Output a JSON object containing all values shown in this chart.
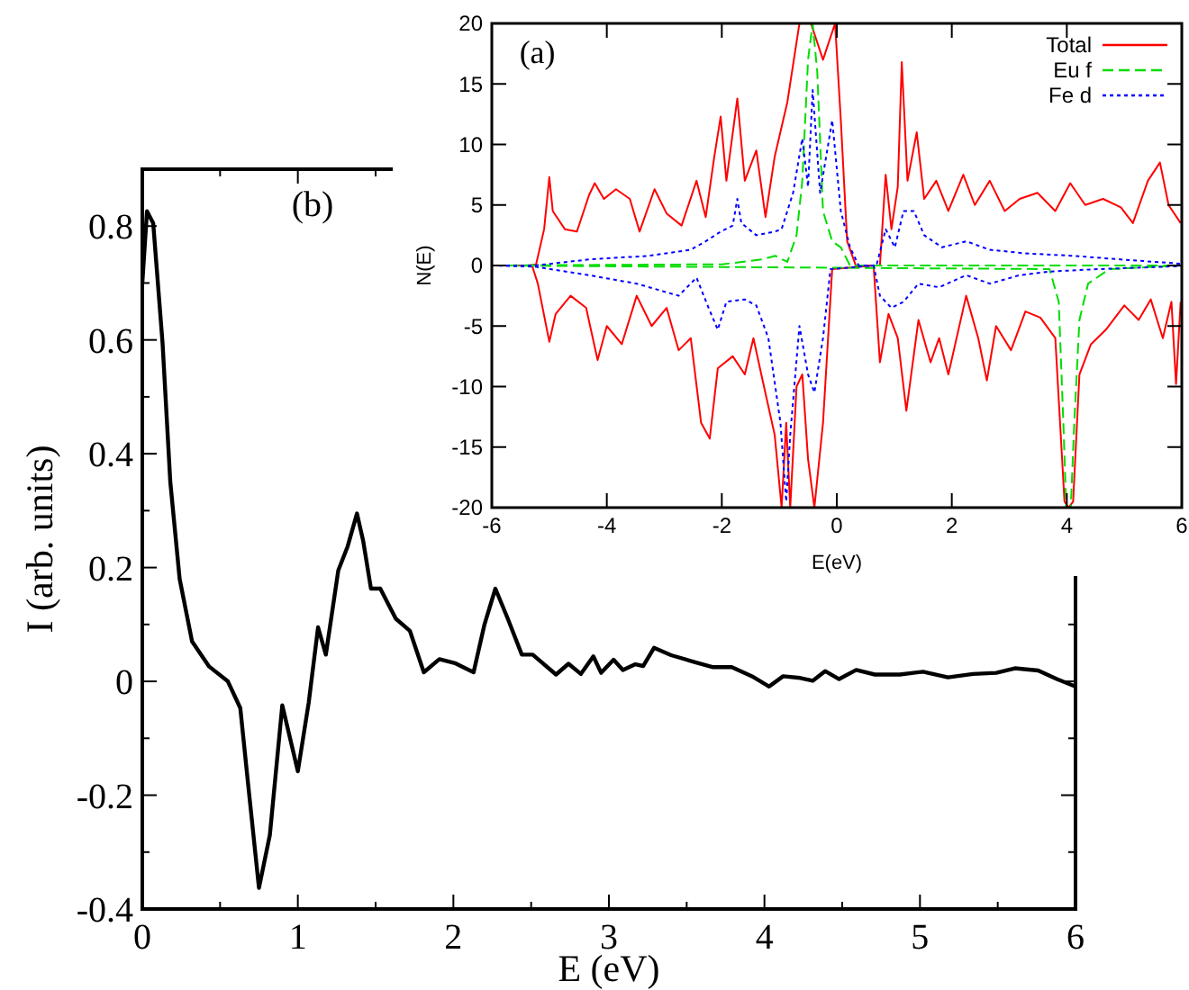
{
  "chart_data": [
    {
      "type": "line",
      "xlabel": "E (eV)",
      "ylabel": "I (arb. units)",
      "annotations": [
        "(b)"
      ],
      "xlim": [
        0,
        6
      ],
      "ylim": [
        -0.4,
        0.9
      ],
      "xticks": [
        0,
        {
          "value": 0.5,
          "label": null
        },
        1,
        {
          "value": 1.5,
          "label": null
        },
        2,
        {
          "value": 2.5,
          "label": null
        },
        3,
        {
          "value": 3.5,
          "label": null
        },
        4,
        {
          "value": 4.5,
          "label": null
        },
        5,
        {
          "value": 5.5,
          "label": null
        },
        6
      ],
      "yticks": [
        -0.4,
        {
          "value": -0.3,
          "label": null
        },
        -0.2,
        {
          "value": -0.1,
          "label": null
        },
        0,
        {
          "value": 0.1,
          "label": null
        },
        0.2,
        {
          "value": 0.3,
          "label": null
        },
        0.4,
        {
          "value": 0.5,
          "label": null
        },
        0.6,
        {
          "value": 0.7,
          "label": null
        },
        0.8
      ],
      "grid": false,
      "legend": false,
      "line_style": "solid",
      "series": [
        {
          "color": "#000000",
          "x": [
            0,
            0.03,
            0.07,
            0.13,
            0.18,
            0.24,
            0.32,
            0.43,
            0.55,
            0.63,
            0.68,
            0.75,
            0.82,
            0.9,
            1.0,
            1.07,
            1.13,
            1.18,
            1.26,
            1.32,
            1.38,
            1.42,
            1.47,
            1.53,
            1.63,
            1.72,
            1.81,
            1.91,
            2.01,
            2.13,
            2.2,
            2.27,
            2.35,
            2.44,
            2.51,
            2.66,
            2.74,
            2.82,
            2.9,
            2.95,
            3.03,
            3.09,
            3.17,
            3.22,
            3.29,
            3.4,
            3.55,
            3.67,
            3.79,
            3.92,
            4.03,
            4.12,
            4.23,
            4.31,
            4.39,
            4.48,
            4.59,
            4.71,
            4.87,
            5.02,
            5.18,
            5.34,
            5.49,
            5.61,
            5.76,
            5.88,
            6.0
          ],
          "values": [
            0.7,
            0.826,
            0.805,
            0.595,
            0.35,
            0.18,
            0.07,
            0.026,
            0.0,
            -0.047,
            -0.18,
            -0.363,
            -0.27,
            -0.042,
            -0.158,
            -0.037,
            0.095,
            0.047,
            0.195,
            0.237,
            0.295,
            0.247,
            0.163,
            0.163,
            0.11,
            0.089,
            0.016,
            0.039,
            0.032,
            0.016,
            0.1,
            0.163,
            0.11,
            0.047,
            0.047,
            0.012,
            0.031,
            0.013,
            0.044,
            0.015,
            0.038,
            0.02,
            0.03,
            0.027,
            0.059,
            0.046,
            0.034,
            0.025,
            0.025,
            0.009,
            -0.009,
            0.009,
            0.006,
            0.001,
            0.018,
            0.004,
            0.02,
            0.012,
            0.012,
            0.017,
            0.007,
            0.013,
            0.015,
            0.023,
            0.019,
            0.004,
            -0.009
          ]
        }
      ]
    },
    {
      "type": "line",
      "xlabel": "E(eV)",
      "ylabel": "N(E)",
      "annotations": [
        "(a)"
      ],
      "xlim": [
        -6,
        6
      ],
      "ylim": [
        -20,
        20
      ],
      "xticks": [
        -6,
        -4,
        -2,
        0,
        2,
        4,
        6
      ],
      "yticks": [
        -20,
        -15,
        -10,
        -5,
        0,
        5,
        10,
        15,
        20
      ],
      "grid": false,
      "legend": "top right",
      "series": [
        {
          "name": "Total",
          "color": "#ff0000",
          "line_style": "solid",
          "x": [
            -6,
            -5.35,
            -5.23,
            -5.09,
            -5.0,
            -4.94,
            -4.73,
            -4.52,
            -4.31,
            -4.21,
            -4.05,
            -3.84,
            -3.6,
            -3.43,
            -3.17,
            -2.96,
            -2.7,
            -2.44,
            -2.28,
            -2.13,
            -2.02,
            -1.92,
            -1.73,
            -1.6,
            -1.4,
            -1.24,
            -1.08,
            -0.86,
            -0.65,
            -0.45,
            -0.24,
            -0.03,
            0.07,
            0.18,
            0.33,
            0.75,
            0.85,
            0.95,
            1.06,
            1.13,
            1.23,
            1.39,
            1.52,
            1.73,
            1.94,
            2.2,
            2.4,
            2.66,
            2.92,
            3.18,
            3.49,
            3.8,
            4.06,
            4.32,
            4.63,
            4.94,
            5.15,
            5.41,
            5.62,
            5.77,
            5.98
          ],
          "values": [
            0,
            0,
            0.1,
            3,
            7.3,
            4.5,
            3,
            2.8,
            5.8,
            6.8,
            5.5,
            6.3,
            5.5,
            2.8,
            6.3,
            4.3,
            3.3,
            7,
            4,
            9,
            12.3,
            7,
            13.8,
            7,
            9.5,
            4,
            9,
            13.5,
            20,
            20,
            17,
            20,
            12,
            2,
            0,
            0,
            7.5,
            3,
            6.5,
            16.8,
            7,
            11,
            5.5,
            7,
            4.5,
            7.5,
            5,
            7,
            4.5,
            5.5,
            6,
            4.5,
            6.8,
            5,
            5.5,
            4.8,
            3.5,
            7,
            8.5,
            5,
            3.5
          ]
        },
        {
          "color": "#ff0000",
          "line_style": "solid",
          "x": [
            -6,
            -5.3,
            -5.2,
            -5.0,
            -4.89,
            -4.63,
            -4.36,
            -4.16,
            -4.0,
            -3.74,
            -3.48,
            -3.22,
            -2.96,
            -2.75,
            -2.54,
            -2.36,
            -2.21,
            -2.07,
            -1.81,
            -1.6,
            -1.45,
            -1.29,
            -1.08,
            -0.96,
            -0.88,
            -0.81,
            -0.7,
            -0.6,
            -0.5,
            -0.39,
            -0.24,
            -0.08,
            0.64,
            0.75,
            0.9,
            1.06,
            1.21,
            1.42,
            1.63,
            1.78,
            1.94,
            2.25,
            2.46,
            2.61,
            2.77,
            3.03,
            3.28,
            3.54,
            3.8,
            3.96,
            4.03,
            4.11,
            4.22,
            4.42,
            4.68,
            5.0,
            5.25,
            5.46,
            5.67,
            5.82,
            5.9,
            5.98
          ],
          "values": [
            0,
            0,
            -1.5,
            -6.3,
            -4,
            -2.5,
            -3.5,
            -7.8,
            -5,
            -6.5,
            -2.5,
            -5,
            -3.5,
            -7,
            -6,
            -13,
            -14.3,
            -8.5,
            -7.5,
            -9,
            -6,
            -9.5,
            -14,
            -20,
            -13,
            -20,
            -10,
            -9,
            -16,
            -20,
            -13,
            -0.3,
            0,
            -8,
            -4,
            -6,
            -12,
            -4.5,
            -8,
            -6,
            -9,
            -2.5,
            -6,
            -9.5,
            -5,
            -7,
            -3.8,
            -4.3,
            -6,
            -19.5,
            -20,
            -19.5,
            -9,
            -6.5,
            -5.3,
            -3.3,
            -4.5,
            -2.8,
            -6,
            -3,
            -9.8,
            -3
          ]
        },
        {
          "name": "Eu f",
          "color": "#00dd00",
          "line_style": "dashed",
          "x": [
            -6,
            -2,
            -1.3,
            -1.07,
            -0.86,
            -0.7,
            -0.6,
            -0.5,
            -0.42,
            -0.34,
            -0.24,
            -0.08,
            0.07,
            0.23,
            6
          ],
          "values": [
            0,
            0.1,
            0.5,
            0.8,
            0.3,
            2.5,
            7,
            17,
            20,
            16,
            4.5,
            2,
            1.5,
            0,
            0
          ]
        },
        {
          "color": "#00dd00",
          "line_style": "dashed",
          "x": [
            -6,
            3.7,
            3.86,
            3.94,
            3.99,
            4.07,
            4.13,
            4.22,
            4.37,
            4.74,
            6
          ],
          "values": [
            0,
            -0.3,
            -3,
            -13,
            -20,
            -20,
            -13,
            -4.5,
            -1.5,
            -0.3,
            0
          ]
        },
        {
          "name": "Fe d",
          "color": "#0000ff",
          "line_style": "dotted",
          "x": [
            -6,
            -5.25,
            -4.31,
            -3.27,
            -2.54,
            -2.28,
            -2.02,
            -1.81,
            -1.73,
            -1.66,
            -1.4,
            -1.08,
            -0.96,
            -0.76,
            -0.6,
            -0.5,
            -0.42,
            -0.29,
            -0.08,
            0.07,
            0.23,
            0.38,
            0.69,
            0.85,
            1.01,
            1.16,
            1.34,
            1.52,
            1.83,
            2.25,
            2.66,
            3.28,
            4.11,
            4.94,
            5.98
          ],
          "values": [
            0,
            0,
            0.5,
            0.8,
            1.3,
            2,
            2.8,
            3.3,
            5.5,
            3.5,
            2.5,
            2.8,
            3,
            6,
            10.5,
            6.5,
            14.5,
            6,
            12,
            4.5,
            1.5,
            0,
            0,
            3,
            1.5,
            4.5,
            4.5,
            2.5,
            1.5,
            2,
            1.3,
            1,
            0.8,
            0.5,
            0.15
          ]
        },
        {
          "color": "#0000ff",
          "line_style": "dotted",
          "x": [
            -6,
            -5.25,
            -4.31,
            -3.48,
            -2.75,
            -2.44,
            -2.23,
            -2.07,
            -1.92,
            -1.6,
            -1.4,
            -1.19,
            -0.98,
            -0.88,
            -0.81,
            -0.65,
            -0.5,
            -0.39,
            -0.24,
            -0.11,
            0.64,
            0.75,
            0.95,
            1.16,
            1.42,
            1.78,
            2.25,
            2.66,
            3.18,
            3.7,
            4.53,
            5.98
          ],
          "values": [
            0,
            -0.1,
            -0.8,
            -1.5,
            -2.5,
            -1,
            -3.5,
            -5.3,
            -3,
            -2.8,
            -3.3,
            -6,
            -13,
            -19.5,
            -14,
            -5,
            -9,
            -10.5,
            -6,
            -0.3,
            0,
            -2.5,
            -3.5,
            -3,
            -1.5,
            -1.8,
            -0.8,
            -1.5,
            -0.8,
            -0.5,
            -0.3,
            -0.05
          ]
        }
      ]
    }
  ]
}
